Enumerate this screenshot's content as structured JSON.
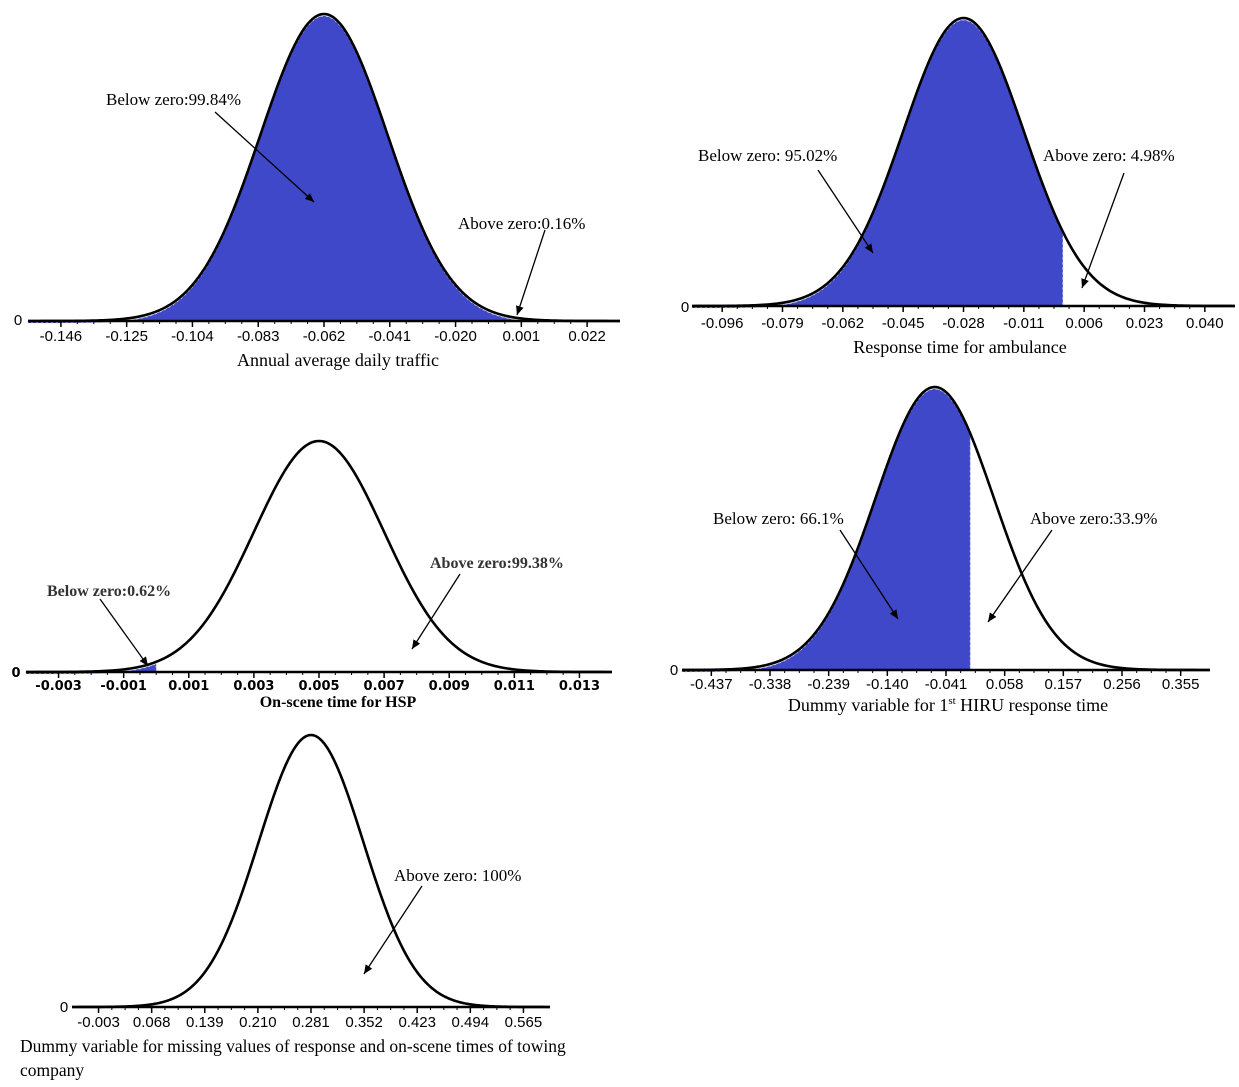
{
  "figure": {
    "fill_color": "#3f48c8",
    "curve_color": "#000000",
    "annotation_color": "#000000"
  },
  "chart_data": [
    {
      "type": "area",
      "id": "adt",
      "xlabel": "Annual average daily traffic",
      "ylabel": "",
      "zero_label": "0",
      "ticks": [
        "-0.146",
        "-0.125",
        "-0.104",
        "-0.083",
        "-0.062",
        "-0.041",
        "-0.020",
        "0.001",
        "0.022"
      ],
      "xlim": [
        -0.1565,
        0.0325
      ],
      "mean": -0.062,
      "sd": 0.0203,
      "shade": "below_zero",
      "annotations": [
        {
          "text": "Below zero:99.84%",
          "region": "below_zero",
          "value_percent": 99.84
        },
        {
          "text": "Above zero:0.16%",
          "region": "above_zero",
          "value_percent": 0.16
        }
      ]
    },
    {
      "type": "area",
      "id": "ambulance",
      "xlabel": "Response time for ambulance",
      "ylabel": "",
      "zero_label": "0",
      "ticks": [
        "-0.096",
        "-0.079",
        "-0.062",
        "-0.045",
        "-0.028",
        "-0.011",
        "0.006",
        "0.023",
        "0.040"
      ],
      "xlim": [
        -0.1045,
        0.0485
      ],
      "mean": -0.028,
      "sd": 0.017,
      "shade": "below_zero",
      "annotations": [
        {
          "text": "Below zero: 95.02%",
          "region": "below_zero",
          "value_percent": 95.02
        },
        {
          "text": "Above zero: 4.98%",
          "region": "above_zero",
          "value_percent": 4.98
        }
      ]
    },
    {
      "type": "area",
      "id": "hsp",
      "xlabel": "On-scene time for HSP",
      "ylabel": "",
      "zero_label": "0",
      "ticks": [
        "-0.003",
        "-0.001",
        "0.001",
        "0.003",
        "0.005",
        "0.007",
        "0.009",
        "0.011",
        "0.013"
      ],
      "xlim": [
        -0.004,
        0.014
      ],
      "mean": 0.005,
      "sd": 0.002,
      "shade": "below_zero",
      "annotations": [
        {
          "text": "Below zero:0.62%",
          "region": "below_zero",
          "value_percent": 0.62
        },
        {
          "text": "Above zero:99.38%",
          "region": "above_zero",
          "value_percent": 99.38
        }
      ]
    },
    {
      "type": "area",
      "id": "hiru",
      "xlabel": "Dummy variable for 1",
      "xlabel_sup": "st",
      "xlabel_rest": " HIRU response time",
      "ylabel": "",
      "zero_label": "0",
      "ticks": [
        "-0.437",
        "-0.338",
        "-0.239",
        "-0.140",
        "-0.041",
        "0.058",
        "0.157",
        "0.256",
        "0.355"
      ],
      "xlim": [
        -0.4865,
        0.4045
      ],
      "mean": -0.06,
      "sd": 0.1,
      "shade": "below_zero",
      "annotations": [
        {
          "text": "Below zero: 66.1%",
          "region": "below_zero",
          "value_percent": 66.1
        },
        {
          "text": "Above zero:33.9%",
          "region": "above_zero",
          "value_percent": 33.9
        }
      ]
    },
    {
      "type": "area",
      "id": "towing",
      "xlabel": "Dummy variable for missing values of response and on-scene times of towing company",
      "ylabel": "",
      "zero_label": "0",
      "ticks": [
        "-0.003",
        "0.068",
        "0.139",
        "0.210",
        "0.281",
        "0.352",
        "0.423",
        "0.494",
        "0.565"
      ],
      "xlim": [
        -0.0385,
        0.6005
      ],
      "mean": 0.281,
      "sd": 0.07,
      "shade": "none",
      "annotations": [
        {
          "text": "Above zero: 100%",
          "region": "above_zero",
          "value_percent": 100
        }
      ]
    }
  ]
}
